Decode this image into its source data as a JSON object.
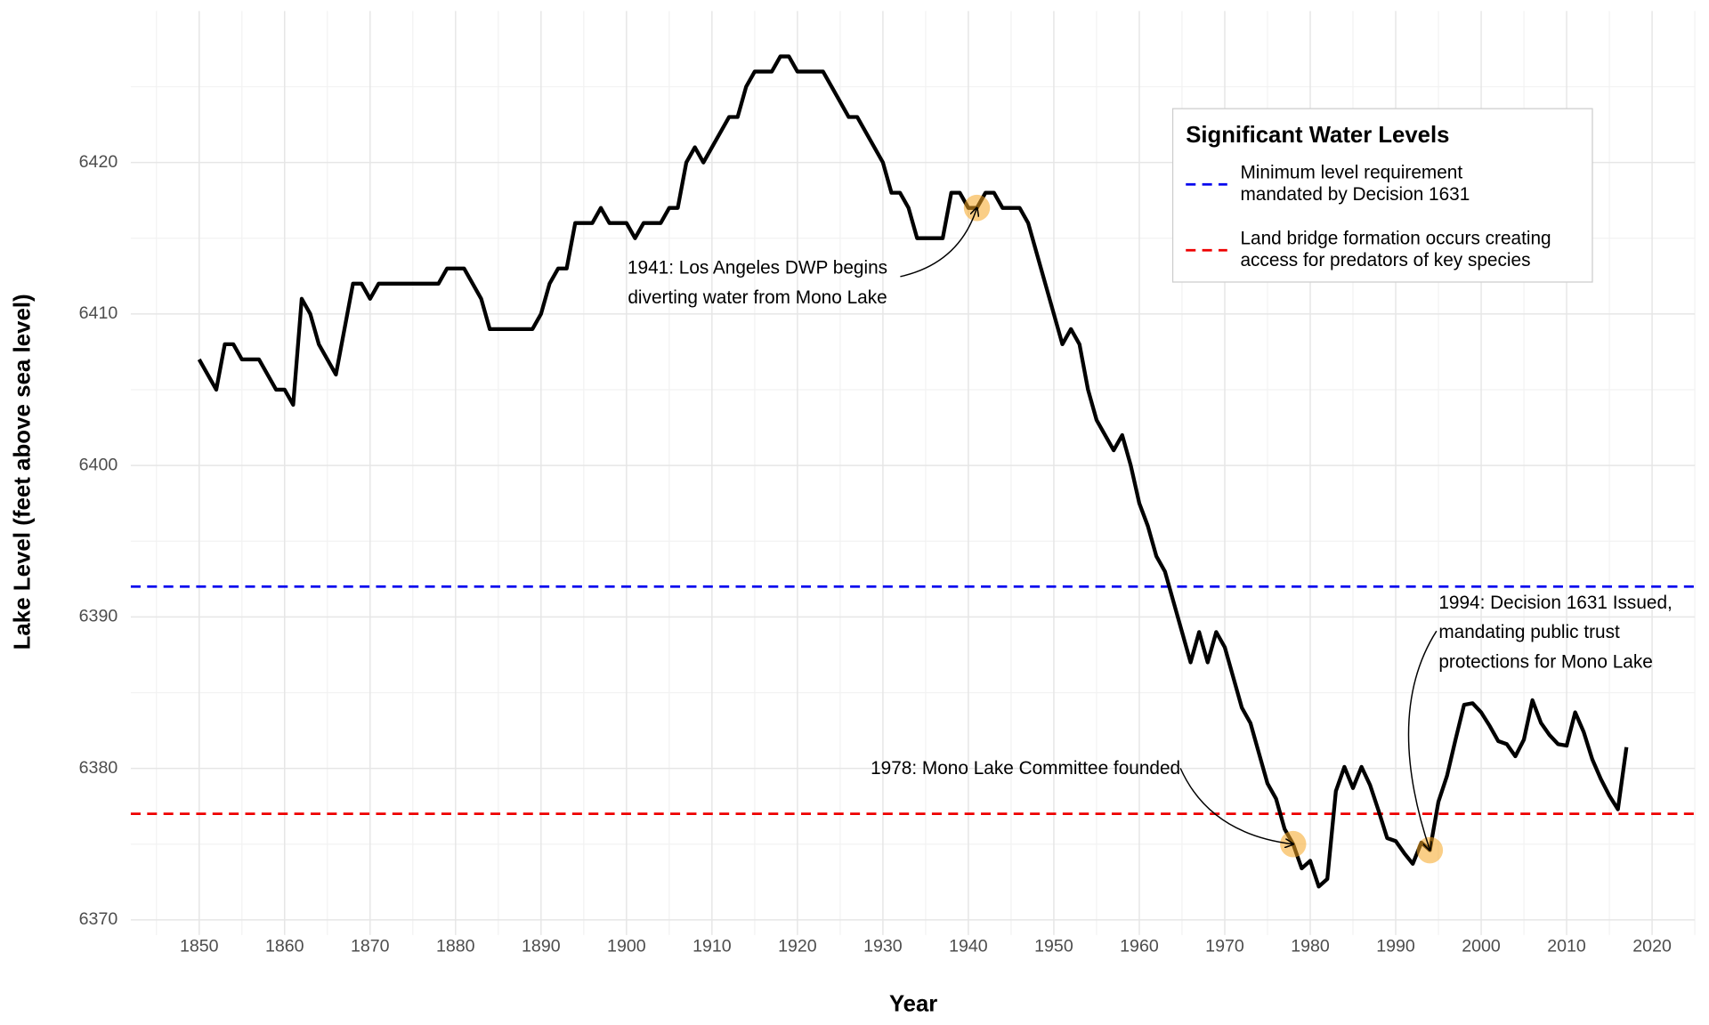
{
  "chart_data": {
    "type": "line",
    "x_label": "Year",
    "y_label": "Lake Level (feet above sea level)",
    "x": [
      1850,
      1851,
      1852,
      1853,
      1854,
      1855,
      1856,
      1857,
      1858,
      1859,
      1860,
      1861,
      1862,
      1863,
      1864,
      1865,
      1866,
      1867,
      1868,
      1869,
      1870,
      1871,
      1872,
      1873,
      1874,
      1875,
      1876,
      1877,
      1878,
      1879,
      1880,
      1881,
      1882,
      1883,
      1884,
      1885,
      1886,
      1887,
      1888,
      1889,
      1890,
      1891,
      1892,
      1893,
      1894,
      1895,
      1896,
      1897,
      1898,
      1899,
      1900,
      1901,
      1902,
      1903,
      1904,
      1905,
      1906,
      1907,
      1908,
      1909,
      1910,
      1911,
      1912,
      1913,
      1914,
      1915,
      1916,
      1917,
      1918,
      1919,
      1920,
      1921,
      1922,
      1923,
      1924,
      1925,
      1926,
      1927,
      1928,
      1929,
      1930,
      1931,
      1932,
      1933,
      1934,
      1935,
      1936,
      1937,
      1938,
      1939,
      1940,
      1941,
      1942,
      1943,
      1944,
      1945,
      1946,
      1947,
      1948,
      1949,
      1950,
      1951,
      1952,
      1953,
      1954,
      1955,
      1956,
      1957,
      1958,
      1959,
      1960,
      1961,
      1962,
      1963,
      1964,
      1965,
      1966,
      1967,
      1968,
      1969,
      1970,
      1971,
      1972,
      1973,
      1974,
      1975,
      1976,
      1977,
      1978,
      1979,
      1980,
      1981,
      1982,
      1983,
      1984,
      1985,
      1986,
      1987,
      1988,
      1989,
      1990,
      1991,
      1992,
      1993,
      1994,
      1995,
      1996,
      1997,
      1998,
      1999,
      2000,
      2001,
      2002,
      2003,
      2004,
      2005,
      2006,
      2007,
      2008,
      2009,
      2010,
      2011,
      2012,
      2013,
      2014,
      2015,
      2016,
      2017
    ],
    "values": [
      6407,
      6406,
      6405,
      6408,
      6408,
      6407,
      6407,
      6407,
      6406,
      6405,
      6405,
      6404,
      6411,
      6410,
      6408,
      6407,
      6406,
      6409,
      6412,
      6412,
      6411,
      6412,
      6412,
      6412,
      6412,
      6412,
      6412,
      6412,
      6412,
      6413,
      6413,
      6413,
      6412,
      6411,
      6409,
      6409,
      6409,
      6409,
      6409,
      6409,
      6410,
      6412,
      6413,
      6413,
      6416,
      6416,
      6416,
      6417,
      6416,
      6416,
      6416,
      6415,
      6416,
      6416,
      6416,
      6417,
      6417,
      6420,
      6421,
      6420,
      6421,
      6422,
      6423,
      6423,
      6425,
      6426,
      6426,
      6426,
      6427,
      6427,
      6426,
      6426,
      6426,
      6426,
      6425,
      6424,
      6423,
      6423,
      6422,
      6421,
      6420,
      6418,
      6418,
      6417,
      6415,
      6415,
      6415,
      6415,
      6418,
      6418,
      6417,
      6417,
      6418,
      6418,
      6417,
      6417,
      6417,
      6416,
      6414,
      6412,
      6410,
      6408,
      6409,
      6408,
      6405,
      6403,
      6402,
      6401,
      6402,
      6400,
      6397.5,
      6396,
      6394,
      6393,
      6391,
      6389,
      6387,
      6389,
      6387,
      6389,
      6388,
      6386,
      6384,
      6383,
      6381,
      6379,
      6378,
      6376,
      6375,
      6373.4,
      6373.9,
      6372.2,
      6372.7,
      6378.5,
      6380.1,
      6378.7,
      6380.1,
      6378.9,
      6377.2,
      6375.4,
      6375.2,
      6374.4,
      6373.7,
      6375.1,
      6374.6,
      6377.8,
      6379.5,
      6381.9,
      6384.2,
      6384.3,
      6383.7,
      6382.8,
      6381.8,
      6381.6,
      6380.8,
      6381.9,
      6384.5,
      6383.0,
      6382.2,
      6381.6,
      6381.5,
      6383.7,
      6382.4,
      6380.6,
      6379.3,
      6378.2,
      6377.3,
      6381.4
    ],
    "color": "#000000",
    "xlim": [
      1842,
      2025
    ],
    "ylim": [
      6369,
      6430
    ],
    "xticks": [
      1850,
      1860,
      1870,
      1880,
      1890,
      1900,
      1910,
      1920,
      1930,
      1940,
      1950,
      1960,
      1970,
      1980,
      1990,
      2000,
      2010,
      2020
    ],
    "yticks": [
      6370,
      6380,
      6390,
      6400,
      6410,
      6420
    ],
    "x_minor_ticks": [
      1845,
      1855,
      1865,
      1875,
      1885,
      1895,
      1905,
      1915,
      1925,
      1935,
      1945,
      1955,
      1965,
      1975,
      1985,
      1995,
      2005,
      2015,
      2025
    ],
    "y_minor_ticks": [
      6375,
      6385,
      6395,
      6405,
      6415,
      6425
    ],
    "grid": true,
    "legend_title": "Significant Water Levels",
    "legend_position": "top-right",
    "reference_lines": [
      {
        "name": [
          "Minimum level requirement",
          "mandated by Decision 1631"
        ],
        "value": 6392,
        "color": "#0000ee"
      },
      {
        "name": [
          "Land bridge formation occurs creating",
          "access for predators of key species"
        ],
        "value": 6377,
        "color": "#ee0000"
      }
    ],
    "annotations": [
      {
        "text": [
          "1941: Los Angeles DWP begins",
          "diverting water from Mono Lake"
        ],
        "x": 1941,
        "y": 6417
      },
      {
        "text": [
          "1978: Mono Lake Committee founded"
        ],
        "x": 1978,
        "y": 6375
      },
      {
        "text": [
          "1994: Decision 1631 Issued,",
          "mandating public trust",
          "protections for Mono Lake"
        ],
        "x": 1994,
        "y": 6374.6
      }
    ],
    "highlight_color": "#f5a623"
  }
}
